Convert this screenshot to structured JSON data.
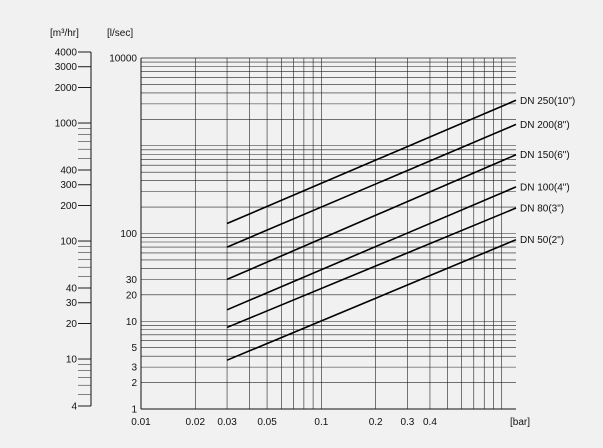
{
  "chart_data": {
    "type": "line",
    "x_scale": "log",
    "y_scale": "log",
    "grid": true,
    "xlim": [
      0.01,
      1.2
    ],
    "ylim": [
      1,
      10000
    ],
    "x_unit": "[bar]",
    "y_unit": "[l/sec]",
    "secondary_y_unit": "[m³/hr]",
    "x_ticks": [
      {
        "value": 0.01,
        "label": "0.01"
      },
      {
        "value": 0.02,
        "label": "0.02"
      },
      {
        "value": 0.03,
        "label": "0.03"
      },
      {
        "value": 0.05,
        "label": "0.05"
      },
      {
        "value": 0.1,
        "label": "0.1"
      },
      {
        "value": 0.2,
        "label": "0.2"
      },
      {
        "value": 0.3,
        "label": "0.3"
      },
      {
        "value": 0.4,
        "label": "0.4"
      }
    ],
    "y_ticks": [
      {
        "value": 1,
        "label": "1"
      },
      {
        "value": 2,
        "label": "2"
      },
      {
        "value": 3,
        "label": "3"
      },
      {
        "value": 5,
        "label": "5"
      },
      {
        "value": 10,
        "label": "10"
      },
      {
        "value": 20,
        "label": "20"
      },
      {
        "value": 30,
        "label": "30"
      },
      {
        "value": 100,
        "label": "100"
      },
      {
        "value": 10000,
        "label": "10000"
      }
    ],
    "secondary_y_ticks": [
      {
        "value": 4,
        "label": "4"
      },
      {
        "value": 10,
        "label": "10"
      },
      {
        "value": 20,
        "label": "20"
      },
      {
        "value": 30,
        "label": "30"
      },
      {
        "value": 40,
        "label": "40"
      },
      {
        "value": 100,
        "label": "100"
      },
      {
        "value": 200,
        "label": "200"
      },
      {
        "value": 300,
        "label": "300"
      },
      {
        "value": 400,
        "label": "400"
      },
      {
        "value": 1000,
        "label": "1000"
      },
      {
        "value": 2000,
        "label": "2000"
      },
      {
        "value": 3000,
        "label": "3000"
      },
      {
        "value": 4000,
        "label": "4000"
      }
    ],
    "series": [
      {
        "name": "DN 250(10\")",
        "x": [
          0.03,
          1.2
        ],
        "y": [
          130,
          3300
        ]
      },
      {
        "name": "DN 200(8\")",
        "x": [
          0.03,
          1.2
        ],
        "y": [
          70,
          1750
        ]
      },
      {
        "name": "DN 150(6\")",
        "x": [
          0.03,
          1.2
        ],
        "y": [
          30,
          790
        ]
      },
      {
        "name": "DN 100(4\")",
        "x": [
          0.03,
          1.2
        ],
        "y": [
          13.5,
          340
        ]
      },
      {
        "name": "DN 80(3\")",
        "x": [
          0.03,
          1.2
        ],
        "y": [
          8.5,
          195
        ]
      },
      {
        "name": "DN 50(2\")",
        "x": [
          0.03,
          1.2
        ],
        "y": [
          3.6,
          85
        ]
      }
    ]
  }
}
